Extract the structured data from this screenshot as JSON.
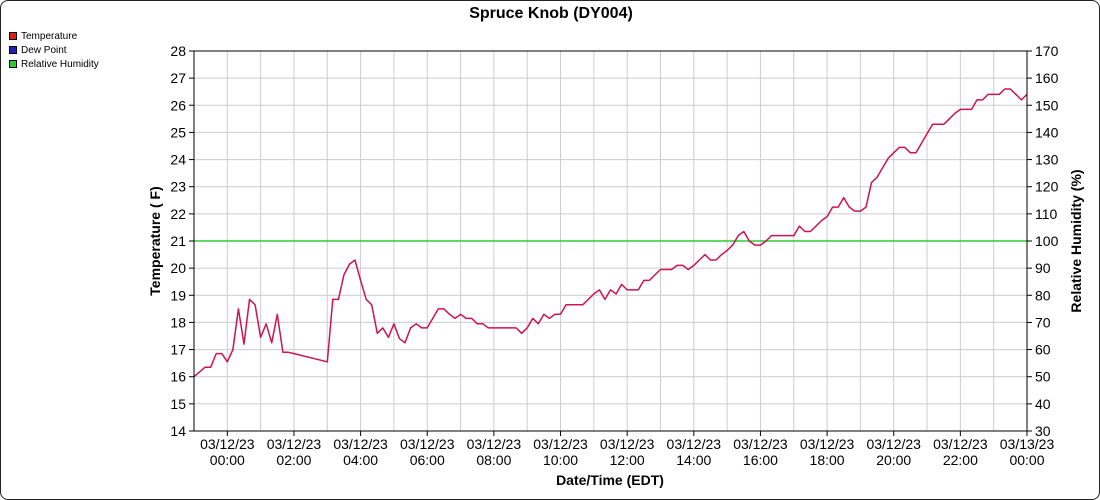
{
  "chart_data": {
    "type": "line",
    "title": "Spruce Knob (DY004)",
    "xlabel": "Date/Time (EDT)",
    "ylabel": "Temperature ( F)",
    "y2label": "Relative Humidity (%)",
    "ylim": [
      14,
      28
    ],
    "y2lim": [
      30,
      170
    ],
    "xlim": [
      "2023-03-11 23:00",
      "2023-03-13 00:00"
    ],
    "grid": true,
    "legend_position": "top-left",
    "x_ticks": [
      {
        "date": "03/12/23",
        "time": "00:00"
      },
      {
        "date": "03/12/23",
        "time": "02:00"
      },
      {
        "date": "03/12/23",
        "time": "04:00"
      },
      {
        "date": "03/12/23",
        "time": "06:00"
      },
      {
        "date": "03/12/23",
        "time": "08:00"
      },
      {
        "date": "03/12/23",
        "time": "10:00"
      },
      {
        "date": "03/12/23",
        "time": "12:00"
      },
      {
        "date": "03/12/23",
        "time": "14:00"
      },
      {
        "date": "03/12/23",
        "time": "16:00"
      },
      {
        "date": "03/12/23",
        "time": "18:00"
      },
      {
        "date": "03/12/23",
        "time": "20:00"
      },
      {
        "date": "03/12/23",
        "time": "22:00"
      },
      {
        "date": "03/13/23",
        "time": "00:00"
      }
    ],
    "y_ticks": [
      14,
      15,
      16,
      17,
      18,
      19,
      20,
      21,
      22,
      23,
      24,
      25,
      26,
      27,
      28
    ],
    "y2_ticks": [
      30,
      40,
      50,
      60,
      70,
      80,
      90,
      100,
      110,
      120,
      130,
      140,
      150,
      160,
      170
    ],
    "series": [
      {
        "name": "Temperature",
        "color": "#e41a1c",
        "axis": "left",
        "x": [
          "2023-03-11 23:00",
          "2023-03-11 23:20",
          "2023-03-11 23:30",
          "2023-03-11 23:40",
          "2023-03-11 23:50",
          "2023-03-12 00:00",
          "2023-03-12 00:10",
          "2023-03-12 00:20",
          "2023-03-12 00:30",
          "2023-03-12 00:40",
          "2023-03-12 00:50",
          "2023-03-12 01:00",
          "2023-03-12 01:10",
          "2023-03-12 01:20",
          "2023-03-12 01:30",
          "2023-03-12 01:40",
          "2023-03-12 01:50",
          "2023-03-12 02:00",
          "2023-03-12 03:00",
          "2023-03-12 03:10",
          "2023-03-12 03:20",
          "2023-03-12 03:30",
          "2023-03-12 03:40",
          "2023-03-12 03:50",
          "2023-03-12 04:00",
          "2023-03-12 04:10",
          "2023-03-12 04:20",
          "2023-03-12 04:30",
          "2023-03-12 04:40",
          "2023-03-12 04:50",
          "2023-03-12 05:00",
          "2023-03-12 05:10",
          "2023-03-12 05:20",
          "2023-03-12 05:30",
          "2023-03-12 05:40",
          "2023-03-12 05:50",
          "2023-03-12 06:00",
          "2023-03-12 06:20",
          "2023-03-12 06:30",
          "2023-03-12 06:40",
          "2023-03-12 06:50",
          "2023-03-12 07:00",
          "2023-03-12 07:10",
          "2023-03-12 07:20",
          "2023-03-12 07:30",
          "2023-03-12 07:40",
          "2023-03-12 07:50",
          "2023-03-12 08:00",
          "2023-03-12 08:10",
          "2023-03-12 08:20",
          "2023-03-12 08:30",
          "2023-03-12 08:40",
          "2023-03-12 08:50",
          "2023-03-12 09:00",
          "2023-03-12 09:10",
          "2023-03-12 09:20",
          "2023-03-12 09:30",
          "2023-03-12 09:40",
          "2023-03-12 09:50",
          "2023-03-12 10:00",
          "2023-03-12 10:10",
          "2023-03-12 10:20",
          "2023-03-12 10:30",
          "2023-03-12 10:40",
          "2023-03-12 10:50",
          "2023-03-12 11:00",
          "2023-03-12 11:10",
          "2023-03-12 11:20",
          "2023-03-12 11:30",
          "2023-03-12 11:40",
          "2023-03-12 11:50",
          "2023-03-12 12:00",
          "2023-03-12 12:10",
          "2023-03-12 12:20",
          "2023-03-12 12:30",
          "2023-03-12 12:40",
          "2023-03-12 12:50",
          "2023-03-12 13:00",
          "2023-03-12 13:10",
          "2023-03-12 13:20",
          "2023-03-12 13:30",
          "2023-03-12 13:40",
          "2023-03-12 13:50",
          "2023-03-12 14:00",
          "2023-03-12 14:10",
          "2023-03-12 14:20",
          "2023-03-12 14:30",
          "2023-03-12 14:40",
          "2023-03-12 14:50",
          "2023-03-12 15:00",
          "2023-03-12 15:10",
          "2023-03-12 15:20",
          "2023-03-12 15:30",
          "2023-03-12 15:40",
          "2023-03-12 15:50",
          "2023-03-12 16:00",
          "2023-03-12 16:10",
          "2023-03-12 16:20",
          "2023-03-12 16:30",
          "2023-03-12 16:40",
          "2023-03-12 16:50",
          "2023-03-12 17:00",
          "2023-03-12 17:10",
          "2023-03-12 17:20",
          "2023-03-12 17:30",
          "2023-03-12 17:40",
          "2023-03-12 17:50",
          "2023-03-12 18:00",
          "2023-03-12 18:10",
          "2023-03-12 18:20",
          "2023-03-12 18:30",
          "2023-03-12 18:40",
          "2023-03-12 18:50",
          "2023-03-12 19:00",
          "2023-03-12 19:10",
          "2023-03-12 19:20",
          "2023-03-12 19:30",
          "2023-03-12 19:40",
          "2023-03-12 19:50",
          "2023-03-12 20:00",
          "2023-03-12 20:10",
          "2023-03-12 20:20",
          "2023-03-12 20:30",
          "2023-03-12 20:40",
          "2023-03-12 20:50",
          "2023-03-12 21:00",
          "2023-03-12 21:10",
          "2023-03-12 21:20",
          "2023-03-12 21:30",
          "2023-03-12 21:40",
          "2023-03-12 21:50",
          "2023-03-12 22:00",
          "2023-03-12 22:10",
          "2023-03-12 22:20",
          "2023-03-12 22:30",
          "2023-03-12 22:40",
          "2023-03-12 22:50",
          "2023-03-12 23:00",
          "2023-03-12 23:10",
          "2023-03-12 23:20",
          "2023-03-12 23:30",
          "2023-03-12 23:40",
          "2023-03-12 23:50",
          "2023-03-13 00:00"
        ],
        "values": [
          16.0,
          16.35,
          16.35,
          16.85,
          16.85,
          16.55,
          17.0,
          18.5,
          17.2,
          18.85,
          18.65,
          17.45,
          17.95,
          17.25,
          18.3,
          16.9,
          16.9,
          16.85,
          16.55,
          18.85,
          18.85,
          19.75,
          20.15,
          20.3,
          19.55,
          18.85,
          18.65,
          17.6,
          17.8,
          17.45,
          17.95,
          17.4,
          17.25,
          17.8,
          17.95,
          17.8,
          17.8,
          18.5,
          18.5,
          18.3,
          18.15,
          18.3,
          18.15,
          18.15,
          17.95,
          17.95,
          17.8,
          17.8,
          17.8,
          17.8,
          17.8,
          17.8,
          17.6,
          17.8,
          18.15,
          17.95,
          18.3,
          18.15,
          18.3,
          18.3,
          18.65,
          18.65,
          18.65,
          18.65,
          18.85,
          19.05,
          19.2,
          18.85,
          19.2,
          19.05,
          19.4,
          19.2,
          19.2,
          19.2,
          19.55,
          19.55,
          19.75,
          19.95,
          19.95,
          19.95,
          20.1,
          20.1,
          19.95,
          20.1,
          20.3,
          20.5,
          20.3,
          20.3,
          20.5,
          20.65,
          20.85,
          21.2,
          21.35,
          21.0,
          20.85,
          20.85,
          21.0,
          21.2,
          21.2,
          21.2,
          21.2,
          21.2,
          21.55,
          21.35,
          21.35,
          21.55,
          21.75,
          21.9,
          22.25,
          22.25,
          22.6,
          22.25,
          22.1,
          22.1,
          22.25,
          23.15,
          23.35,
          23.7,
          24.05,
          24.25,
          24.45,
          24.45,
          24.25,
          24.25,
          24.6,
          24.95,
          25.3,
          25.3,
          25.3,
          25.5,
          25.7,
          25.85,
          25.85,
          25.85,
          26.2,
          26.2,
          26.4,
          26.4,
          26.4,
          26.6,
          26.6,
          26.4,
          26.2,
          26.4
        ]
      },
      {
        "name": "Dew Point",
        "color": "#1f1fbf",
        "axis": "left",
        "x": [],
        "values": []
      },
      {
        "name": "Relative Humidity",
        "color": "#2ecc2e",
        "axis": "right",
        "x": [
          "2023-03-11 23:00",
          "2023-03-13 00:00"
        ],
        "values": [
          100,
          100
        ]
      }
    ]
  }
}
